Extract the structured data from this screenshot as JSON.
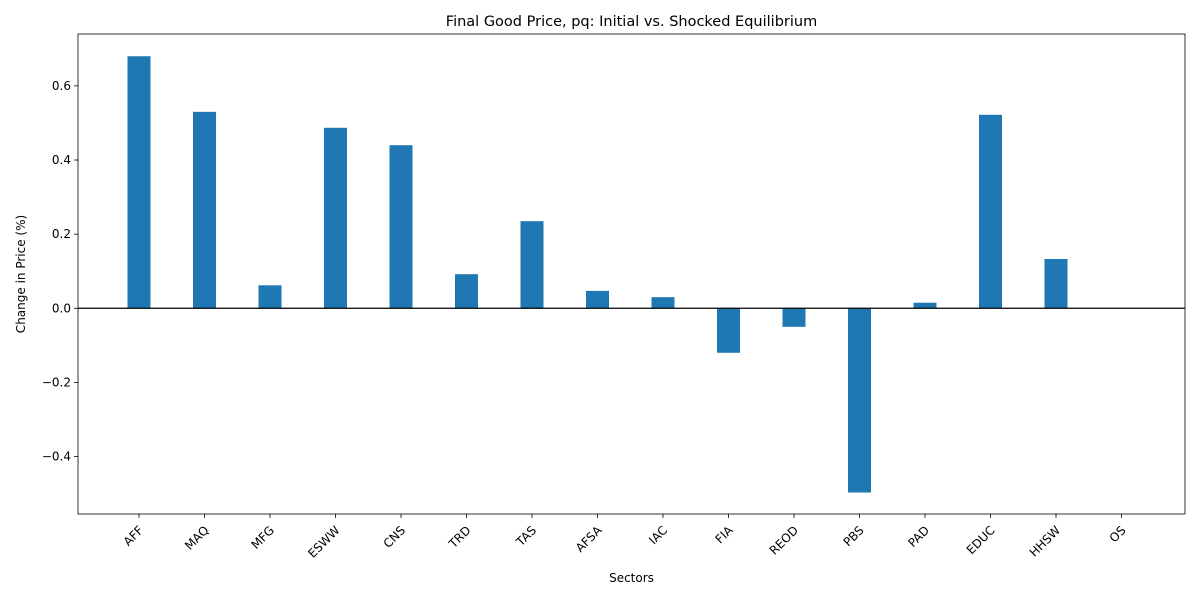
{
  "chart_data": {
    "type": "bar",
    "title": "Final Good Price, pq: Initial vs. Shocked Equilibrium",
    "xlabel": "Sectors",
    "ylabel": "Change in Price (%)",
    "categories": [
      "AFF",
      "MAQ",
      "MFG",
      "ESWW",
      "CNS",
      "TRD",
      "TAS",
      "AFSA",
      "IAC",
      "FIA",
      "REOD",
      "PBS",
      "PAD",
      "EDUC",
      "HHSW",
      "OS"
    ],
    "values": [
      0.68,
      0.53,
      0.062,
      0.487,
      0.44,
      0.092,
      0.235,
      0.047,
      0.03,
      -0.12,
      -0.05,
      -0.497,
      0.015,
      0.522,
      0.133,
      0.0
    ],
    "ylim": [
      -0.555,
      0.74
    ],
    "yticks": [
      -0.4,
      -0.2,
      0.0,
      0.2,
      0.4,
      0.6
    ],
    "ytick_labels": [
      "−0.4",
      "−0.2",
      "0.0",
      "0.2",
      "0.4",
      "0.6"
    ],
    "bar_color": "#1f77b4",
    "zero_line": true,
    "grid": false,
    "legend": "none",
    "xtick_rotation_deg": 45
  }
}
